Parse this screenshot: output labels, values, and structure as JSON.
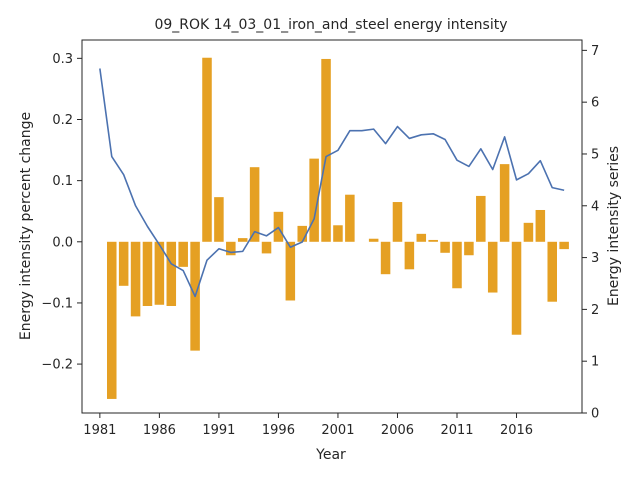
{
  "chart_data": {
    "type": "bar",
    "title": "09_ROK 14_03_01_iron_and_steel energy intensity",
    "xlabel": "Year",
    "ylabel_left": "Energy intensity percent change",
    "ylabel_right": "Energy intensity series",
    "xlim": [
      1979.5,
      2021.5
    ],
    "ylim_left": [
      -0.28,
      0.33
    ],
    "ylim_right": [
      0,
      7.2
    ],
    "x_ticks": [
      1981,
      1986,
      1991,
      1996,
      2001,
      2006,
      2011,
      2016
    ],
    "y_ticks_left": [
      -0.2,
      -0.1,
      0.0,
      0.1,
      0.2,
      0.3
    ],
    "y_ticks_right": [
      0,
      1,
      2,
      3,
      4,
      5,
      6,
      7
    ],
    "colors": {
      "bars": "#e5a023",
      "line": "#4c72b0",
      "axes": "#262626"
    },
    "years": [
      1981,
      1982,
      1983,
      1984,
      1985,
      1986,
      1987,
      1988,
      1989,
      1990,
      1991,
      1992,
      1993,
      1994,
      1995,
      1996,
      1997,
      1998,
      1999,
      2000,
      2001,
      2002,
      2003,
      2004,
      2005,
      2006,
      2007,
      2008,
      2009,
      2010,
      2011,
      2012,
      2013,
      2014,
      2015,
      2016,
      2017,
      2018,
      2019,
      2020
    ],
    "series": [
      {
        "kind": "bar",
        "axis": "left",
        "values": [
          null,
          -0.257,
          -0.072,
          -0.122,
          -0.105,
          -0.103,
          -0.105,
          -0.041,
          -0.178,
          0.301,
          0.073,
          -0.022,
          0.006,
          0.122,
          -0.019,
          0.049,
          -0.096,
          0.026,
          0.136,
          0.299,
          0.027,
          0.077,
          null,
          0.005,
          -0.053,
          0.065,
          -0.045,
          0.013,
          0.003,
          -0.018,
          -0.076,
          -0.022,
          0.075,
          -0.083,
          0.127,
          -0.152,
          0.031,
          0.052,
          -0.098,
          -0.012
        ]
      },
      {
        "kind": "line",
        "axis": "right",
        "values": [
          6.65,
          4.95,
          4.6,
          4.0,
          3.6,
          3.25,
          2.88,
          2.75,
          2.25,
          2.95,
          3.17,
          3.1,
          3.12,
          3.5,
          3.42,
          3.58,
          3.2,
          3.3,
          3.75,
          4.95,
          5.07,
          5.45,
          5.45,
          5.48,
          5.2,
          5.53,
          5.3,
          5.37,
          5.39,
          5.28,
          4.88,
          4.76,
          5.1,
          4.7,
          5.33,
          4.5,
          4.62,
          4.87,
          4.35,
          4.3
        ]
      }
    ]
  }
}
